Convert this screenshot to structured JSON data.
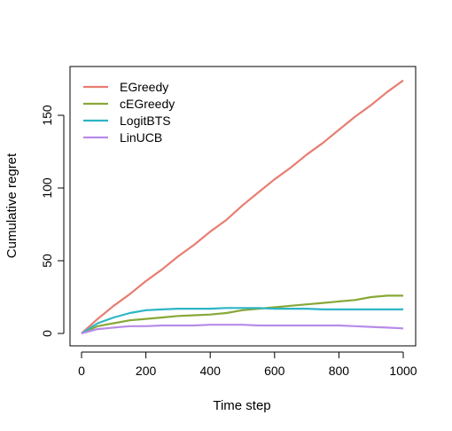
{
  "chart_data": {
    "type": "line",
    "title": "",
    "xlabel": "Time step",
    "ylabel": "Cumulative regret",
    "xlim": [
      0,
      1000
    ],
    "ylim": [
      0,
      175
    ],
    "xticks": [
      0,
      200,
      400,
      600,
      800,
      1000
    ],
    "yticks": [
      0,
      50,
      100,
      150
    ],
    "grid": false,
    "legend_position": "top-left",
    "series": [
      {
        "name": "EGreedy",
        "color": "#E87D72",
        "x": [
          0,
          50,
          100,
          150,
          200,
          250,
          300,
          350,
          400,
          450,
          500,
          550,
          600,
          650,
          700,
          750,
          800,
          850,
          900,
          950,
          1000
        ],
        "y": [
          0,
          10,
          19,
          27,
          36,
          44,
          53,
          61,
          70,
          78,
          88,
          97,
          106,
          114,
          123,
          131,
          140,
          149,
          157,
          166,
          174
        ]
      },
      {
        "name": "cEGreedy",
        "color": "#88A838",
        "x": [
          0,
          50,
          100,
          150,
          200,
          250,
          300,
          350,
          400,
          450,
          500,
          550,
          600,
          650,
          700,
          750,
          800,
          850,
          900,
          950,
          1000
        ],
        "y": [
          0,
          5,
          7,
          9,
          10,
          11,
          12,
          12.5,
          13,
          14,
          16,
          17,
          18,
          19,
          20,
          21,
          22,
          23,
          25,
          26,
          26
        ]
      },
      {
        "name": "LogitBTS",
        "color": "#2DB5C6",
        "x": [
          0,
          50,
          100,
          150,
          200,
          250,
          300,
          350,
          400,
          450,
          500,
          550,
          600,
          650,
          700,
          750,
          800,
          850,
          900,
          950,
          1000
        ],
        "y": [
          0,
          7,
          11,
          14,
          16,
          16.5,
          17,
          17,
          17,
          17.5,
          17.5,
          17.5,
          17,
          17,
          17,
          16.5,
          16.5,
          16.5,
          16.5,
          16.5,
          16.5
        ]
      },
      {
        "name": "LinUCB",
        "color": "#B88BE8",
        "x": [
          0,
          50,
          100,
          150,
          200,
          250,
          300,
          350,
          400,
          450,
          500,
          550,
          600,
          650,
          700,
          750,
          800,
          850,
          900,
          950,
          1000
        ],
        "y": [
          0,
          3,
          4,
          5,
          5,
          5.5,
          5.5,
          5.5,
          6,
          6,
          6,
          5.5,
          5.5,
          5.5,
          5.5,
          5.5,
          5.5,
          5,
          4.5,
          4,
          3.5
        ]
      }
    ]
  }
}
